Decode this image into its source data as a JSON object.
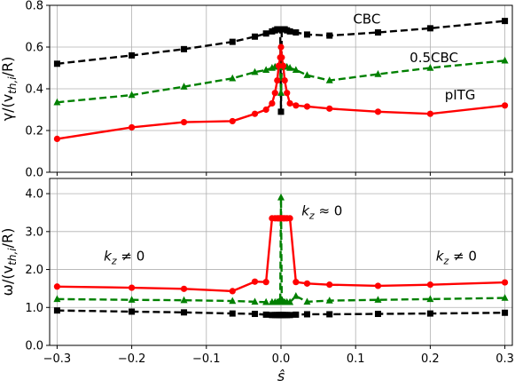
{
  "chart_data": [
    {
      "type": "line",
      "ylabel": "γ/(v_{th,i}/R)",
      "xlabel": "",
      "xlim": [
        -0.31,
        0.31
      ],
      "ylim": [
        0.0,
        0.8
      ],
      "yticks": [
        "0.0",
        "0.2",
        "0.4",
        "0.6",
        "0.8"
      ],
      "grid": true,
      "annotations": [
        {
          "text": "CBC",
          "x": 0.115,
          "y": 0.735
        },
        {
          "text": "0.5CBC",
          "x": 0.205,
          "y": 0.55
        },
        {
          "text": "pITG",
          "x": 0.24,
          "y": 0.37
        }
      ],
      "series": [
        {
          "name": "CBC",
          "color": "#000000",
          "linestyle": "dashed",
          "marker": "square",
          "x": [
            -0.3,
            -0.2,
            -0.13,
            -0.065,
            -0.035,
            -0.02,
            -0.012,
            -0.008,
            -0.005,
            -0.003,
            -0.001,
            0.0,
            0.001,
            0.003,
            0.005,
            0.008,
            0.012,
            0.02,
            0.035,
            0.065,
            0.13,
            0.2,
            0.3
          ],
          "y": [
            0.52,
            0.56,
            0.59,
            0.625,
            0.65,
            0.665,
            0.675,
            0.68,
            0.685,
            0.685,
            0.685,
            0.29,
            0.685,
            0.685,
            0.685,
            0.68,
            0.675,
            0.67,
            0.66,
            0.655,
            0.67,
            0.69,
            0.725
          ]
        },
        {
          "name": "0.5CBC",
          "color": "#008000",
          "linestyle": "dashed",
          "marker": "triangle",
          "x": [
            -0.3,
            -0.2,
            -0.13,
            -0.065,
            -0.035,
            -0.02,
            -0.012,
            -0.008,
            -0.005,
            -0.003,
            -0.001,
            0.0,
            0.001,
            0.003,
            0.005,
            0.008,
            0.012,
            0.02,
            0.035,
            0.065,
            0.13,
            0.2,
            0.3
          ],
          "y": [
            0.335,
            0.37,
            0.41,
            0.45,
            0.48,
            0.49,
            0.5,
            0.505,
            0.505,
            0.51,
            0.51,
            0.38,
            0.51,
            0.51,
            0.505,
            0.505,
            0.5,
            0.49,
            0.465,
            0.44,
            0.47,
            0.5,
            0.535
          ]
        },
        {
          "name": "pITG",
          "color": "#ff0000",
          "linestyle": "solid",
          "marker": "circle",
          "x": [
            -0.3,
            -0.2,
            -0.13,
            -0.065,
            -0.035,
            -0.02,
            -0.012,
            -0.008,
            -0.005,
            -0.003,
            -0.001,
            0.0,
            0.001,
            0.003,
            0.005,
            0.008,
            0.012,
            0.02,
            0.035,
            0.065,
            0.13,
            0.2,
            0.3
          ],
          "y": [
            0.16,
            0.215,
            0.24,
            0.245,
            0.28,
            0.3,
            0.33,
            0.38,
            0.44,
            0.51,
            0.55,
            0.6,
            0.55,
            0.51,
            0.44,
            0.38,
            0.33,
            0.32,
            0.315,
            0.305,
            0.29,
            0.28,
            0.32
          ]
        }
      ]
    },
    {
      "type": "line",
      "ylabel": "ω/(v_{th,i}/R)",
      "xlabel": "ŝ",
      "xlim": [
        -0.31,
        0.31
      ],
      "ylim": [
        0.0,
        4.4
      ],
      "yticks": [
        "0.0",
        "1.0",
        "2.0",
        "3.0",
        "4.0"
      ],
      "xticks": [
        "−0.3",
        "−0.2",
        "−0.1",
        "0.0",
        "0.1",
        "0.2",
        "0.3"
      ],
      "grid": true,
      "annotations": [
        {
          "text": "k_z ≈ 0",
          "x": 0.055,
          "y": 3.55
        },
        {
          "text": "k_z ≠ 0",
          "x": -0.21,
          "y": 2.35
        },
        {
          "text": "k_z ≠ 0",
          "x": 0.235,
          "y": 2.35
        }
      ],
      "series": [
        {
          "name": "CBC",
          "color": "#000000",
          "linestyle": "dashed",
          "marker": "square",
          "x": [
            -0.3,
            -0.2,
            -0.13,
            -0.065,
            -0.035,
            -0.02,
            -0.012,
            -0.008,
            -0.005,
            -0.003,
            -0.001,
            0.0,
            0.001,
            0.003,
            0.005,
            0.008,
            0.012,
            0.02,
            0.035,
            0.065,
            0.13,
            0.2,
            0.3
          ],
          "y": [
            0.92,
            0.89,
            0.87,
            0.84,
            0.83,
            0.81,
            0.8,
            0.8,
            0.8,
            0.8,
            0.8,
            0.8,
            0.8,
            0.8,
            0.8,
            0.8,
            0.8,
            0.81,
            0.82,
            0.82,
            0.83,
            0.84,
            0.86
          ]
        },
        {
          "name": "0.5CBC",
          "color": "#008000",
          "linestyle": "dashed",
          "marker": "triangle",
          "x": [
            -0.3,
            -0.2,
            -0.13,
            -0.065,
            -0.035,
            -0.02,
            -0.012,
            -0.008,
            -0.005,
            -0.003,
            -0.001,
            0.0,
            0.001,
            0.003,
            0.005,
            0.008,
            0.012,
            0.02,
            0.035,
            0.065,
            0.13,
            0.2,
            0.3
          ],
          "y": [
            1.22,
            1.2,
            1.19,
            1.17,
            1.15,
            1.14,
            1.14,
            1.14,
            1.14,
            1.15,
            1.2,
            3.9,
            1.2,
            1.15,
            1.14,
            1.14,
            1.14,
            1.3,
            1.15,
            1.18,
            1.2,
            1.22,
            1.25
          ]
        },
        {
          "name": "pITG",
          "color": "#ff0000",
          "linestyle": "solid",
          "marker": "circle",
          "x": [
            -0.3,
            -0.2,
            -0.13,
            -0.065,
            -0.035,
            -0.02,
            -0.012,
            -0.008,
            -0.005,
            -0.003,
            -0.001,
            0.0,
            0.001,
            0.003,
            0.005,
            0.008,
            0.012,
            0.02,
            0.035,
            0.065,
            0.13,
            0.2,
            0.3
          ],
          "y": [
            1.55,
            1.52,
            1.49,
            1.43,
            1.68,
            1.67,
            3.35,
            3.35,
            3.35,
            3.35,
            3.35,
            3.35,
            3.35,
            3.35,
            3.35,
            3.35,
            3.35,
            1.67,
            1.63,
            1.6,
            1.57,
            1.6,
            1.66
          ]
        }
      ]
    }
  ]
}
